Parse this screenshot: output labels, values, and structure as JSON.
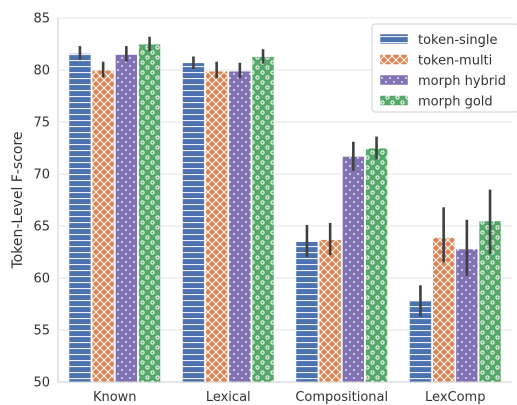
{
  "chart_data": {
    "type": "bar",
    "title": "",
    "xlabel": "",
    "ylabel": "Token-Level F-score",
    "ylim": [
      50,
      85
    ],
    "yticks": [
      50,
      55,
      60,
      65,
      70,
      75,
      80,
      85
    ],
    "grid": "y",
    "legend_position": "top-right",
    "categories": [
      "Known",
      "Lexical",
      "Compositional",
      "LexComp"
    ],
    "series": [
      {
        "name": "token-single",
        "color": "#4c72b0",
        "pattern": "horizontal-lines",
        "values": [
          81.6,
          80.7,
          63.5,
          57.8
        ],
        "error": [
          [
            81.0,
            82.3
          ],
          [
            80.1,
            81.3
          ],
          [
            62.0,
            65.1
          ],
          [
            56.3,
            59.3
          ]
        ]
      },
      {
        "name": "token-multi",
        "color": "#dd8452",
        "pattern": "crosshatch",
        "values": [
          80.0,
          79.9,
          63.7,
          63.9
        ],
        "error": [
          [
            79.3,
            80.8
          ],
          [
            79.2,
            80.8
          ],
          [
            62.2,
            65.3
          ],
          [
            61.5,
            66.8
          ]
        ]
      },
      {
        "name": "morph hybrid",
        "color": "#8172b3",
        "pattern": "dots",
        "values": [
          81.5,
          79.9,
          71.7,
          62.8
        ],
        "error": [
          [
            80.8,
            82.3
          ],
          [
            79.2,
            80.7
          ],
          [
            70.3,
            73.1
          ],
          [
            60.2,
            65.6
          ]
        ]
      },
      {
        "name": "morph gold",
        "color": "#55a868",
        "pattern": "circles",
        "values": [
          82.5,
          81.3,
          72.5,
          65.5
        ],
        "error": [
          [
            81.8,
            83.2
          ],
          [
            80.6,
            82.0
          ],
          [
            71.4,
            73.6
          ],
          [
            62.3,
            68.5
          ]
        ]
      }
    ]
  }
}
